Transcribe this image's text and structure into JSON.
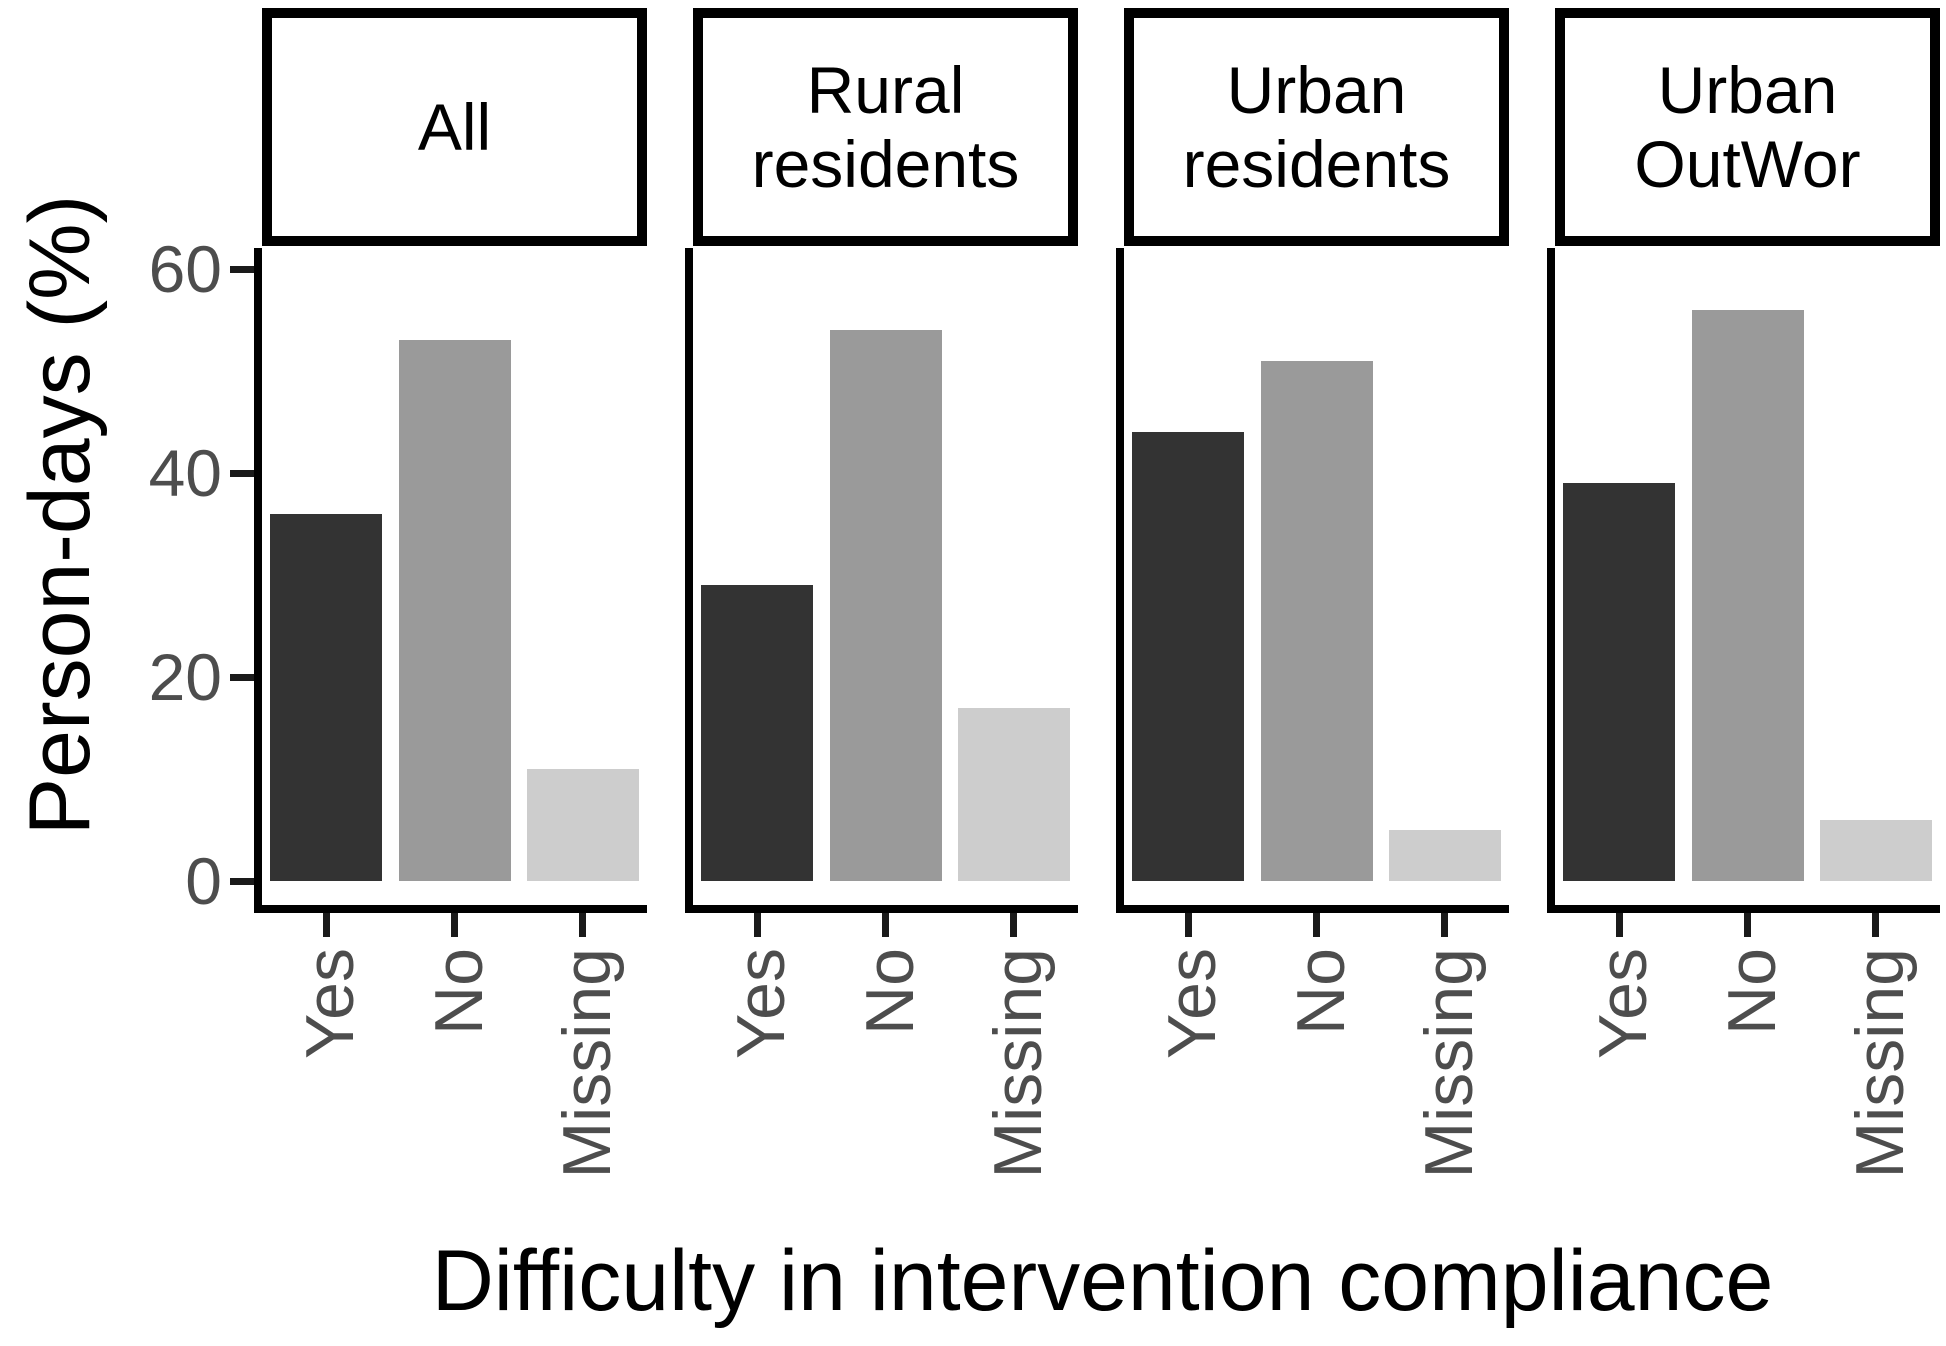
{
  "chart_data": {
    "type": "bar",
    "faceted": true,
    "xlabel": "Difficulty in intervention compliance",
    "ylabel": "Person-days (%)",
    "categories": [
      "Yes",
      "No",
      "Missing"
    ],
    "facets": [
      {
        "label": "All",
        "label_lines": [
          "All"
        ],
        "values": [
          36,
          53,
          11
        ]
      },
      {
        "label": "Rural residents",
        "label_lines": [
          "Rural",
          "residents"
        ],
        "values": [
          29,
          54,
          17
        ]
      },
      {
        "label": "Urban residents",
        "label_lines": [
          "Urban",
          "residents"
        ],
        "values": [
          44,
          51,
          5
        ]
      },
      {
        "label": "Urban OutWor",
        "label_lines": [
          "Urban",
          "OutWor"
        ],
        "values": [
          39,
          56,
          6
        ]
      }
    ],
    "yticks": [
      0,
      20,
      40,
      60
    ],
    "ylim": [
      0,
      63
    ],
    "grid": false,
    "legend_position": "none",
    "bar_colors": {
      "Yes": "#333333",
      "No": "#9a9a9a",
      "Missing": "#cdcdcd"
    },
    "style_colors": {
      "axis_text": "#4d4d4d",
      "axis_title": "#000000",
      "strip_text": "#000000",
      "axis_line": "#000000",
      "background": "#ffffff"
    }
  }
}
